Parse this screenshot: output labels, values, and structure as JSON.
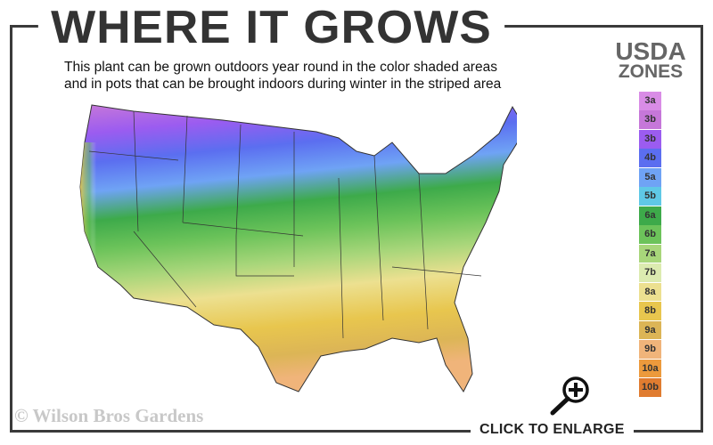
{
  "header": {
    "title": "WHERE IT GROWS",
    "subtitle_line1": "This plant can be grown outdoors year round in the color shaded areas",
    "subtitle_line2": "and in pots that can be brought indoors during winter in the striped area"
  },
  "legend": {
    "title_line1": "USDA",
    "title_line2": "ZONES",
    "zones": [
      {
        "label": "3a",
        "color": "#d98ce6"
      },
      {
        "label": "3b",
        "color": "#c677d9"
      },
      {
        "label": "3b",
        "color": "#9b5cf0"
      },
      {
        "label": "4b",
        "color": "#5b6ef0"
      },
      {
        "label": "5a",
        "color": "#6fa3f5"
      },
      {
        "label": "5b",
        "color": "#5fc8e6"
      },
      {
        "label": "6a",
        "color": "#3daa4a"
      },
      {
        "label": "6b",
        "color": "#6cc35a"
      },
      {
        "label": "7a",
        "color": "#a8d67a"
      },
      {
        "label": "7b",
        "color": "#dcebb0"
      },
      {
        "label": "8a",
        "color": "#ece090"
      },
      {
        "label": "8b",
        "color": "#e8c64e"
      },
      {
        "label": "9a",
        "color": "#dcb556"
      },
      {
        "label": "9b",
        "color": "#f0b47a"
      },
      {
        "label": "10a",
        "color": "#ec9a3c"
      },
      {
        "label": "10b",
        "color": "#e07c30"
      }
    ]
  },
  "footer": {
    "copyright": "© Wilson Bros Gardens",
    "enlarge_label": "CLICK TO ENLARGE"
  },
  "icons": {
    "enlarge": "magnifier-plus-icon"
  }
}
